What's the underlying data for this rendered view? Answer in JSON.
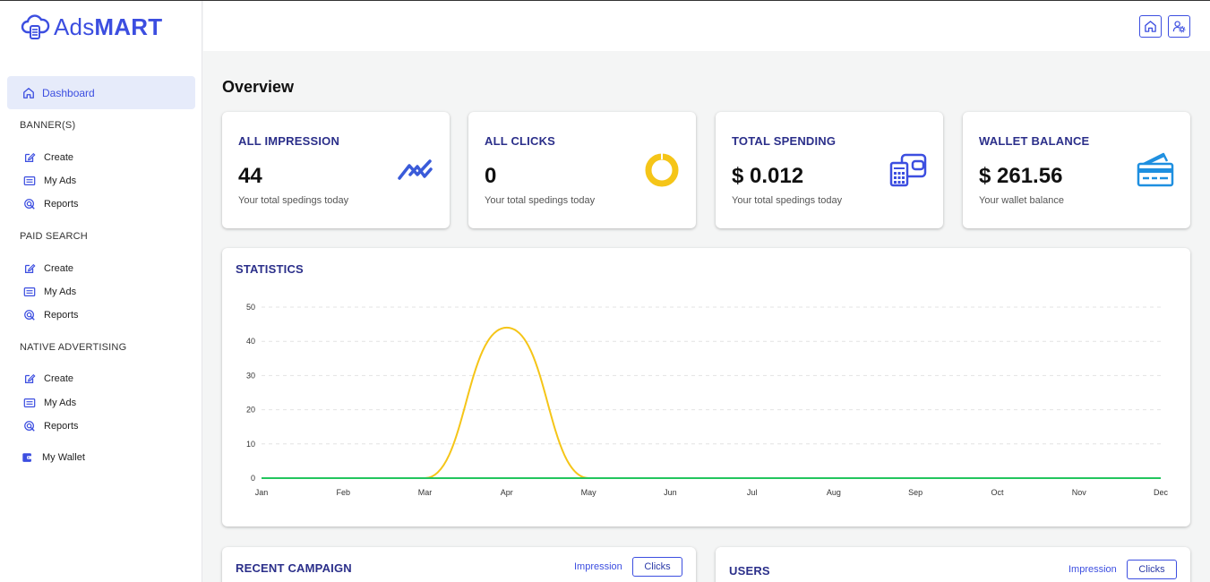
{
  "app": {
    "logo_light": "Ads",
    "logo_bold": "MART",
    "brand_color": "#3c4ee0"
  },
  "sidebar": {
    "dashboard": "Dashboard",
    "sections": [
      {
        "title": "BANNER(S)",
        "items": [
          "Create",
          "My Ads",
          "Reports"
        ]
      },
      {
        "title": "PAID SEARCH",
        "items": [
          "Create",
          "My Ads",
          "Reports"
        ]
      },
      {
        "title": "NATIVE ADVERTISING",
        "items": [
          "Create",
          "My Ads",
          "Reports"
        ]
      }
    ],
    "wallet": "My Wallet"
  },
  "topbar": {
    "icons": [
      "home-icon",
      "user-settings-icon"
    ]
  },
  "main": {
    "title": "Overview",
    "stats": [
      {
        "title": "ALL IMPRESSION",
        "value": "44",
        "sub": "Your total spedings today",
        "icon": "trend-icon"
      },
      {
        "title": "ALL CLICKS",
        "value": "0",
        "sub": "Your total spedings today",
        "icon": "donut-icon"
      },
      {
        "title": "TOTAL SPENDING",
        "value": "$ 0.012",
        "sub": "Your total spedings today",
        "icon": "calculator-wallet-icon"
      },
      {
        "title": "WALLET BALANCE",
        "value": "$ 261.56",
        "sub": "Your wallet balance",
        "icon": "credit-card-icon"
      }
    ],
    "statistics_title": "STATISTICS",
    "recent_campaign": {
      "title": "RECENT CAMPAIGN",
      "impression": "Impression",
      "clicks": "Clicks"
    },
    "users": {
      "title": "USERS",
      "impression": "Impression",
      "clicks": "Clicks"
    }
  },
  "chart_data": {
    "type": "line",
    "categories": [
      "Jan",
      "Feb",
      "Mar",
      "Apr",
      "May",
      "Jun",
      "Jul",
      "Aug",
      "Sep",
      "Oct",
      "Nov",
      "Dec"
    ],
    "yticks": [
      0,
      10,
      20,
      30,
      40,
      50
    ],
    "ylim": [
      0,
      50
    ],
    "series": [
      {
        "values": [
          0,
          0,
          0,
          44,
          0,
          0,
          0,
          0,
          0,
          0,
          0,
          0
        ],
        "color": "#f5c518"
      },
      {
        "values": [
          0,
          0,
          0,
          0,
          0,
          0,
          0,
          0,
          0,
          0,
          0,
          0
        ],
        "color": "#22c55e"
      }
    ],
    "grid": true
  }
}
